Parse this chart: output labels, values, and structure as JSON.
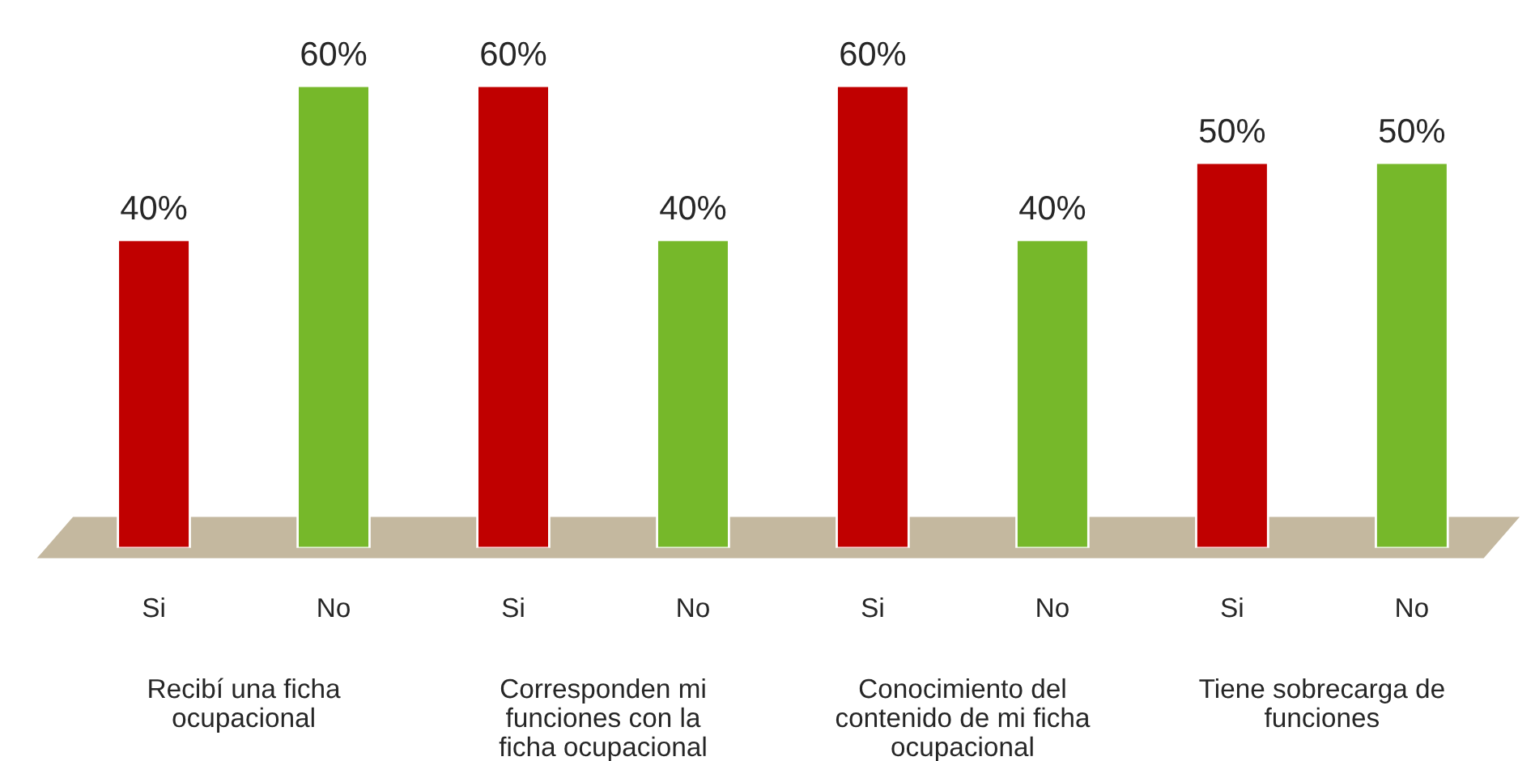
{
  "chart_data": {
    "type": "bar",
    "categories": [
      "Si",
      "No",
      "Si",
      "No",
      "Si",
      "No",
      "Si",
      "No"
    ],
    "values": [
      40,
      60,
      60,
      40,
      60,
      40,
      50,
      50
    ],
    "colors": [
      "#c00000",
      "#76b82a",
      "#c00000",
      "#76b82a",
      "#c00000",
      "#76b82a",
      "#c00000",
      "#76b82a"
    ],
    "value_labels": [
      "40%",
      "60%",
      "60%",
      "40%",
      "60%",
      "40%",
      "50%",
      "50%"
    ],
    "annotations": [
      "Recibí una ficha\nocupacional",
      "Corresponden mi\nfunciones con la\nficha ocupacional",
      "Conocimiento del\ncontenido de mi ficha\nocupacional",
      "Tiene sobrecarga de\nfunciones"
    ],
    "grid": false,
    "legend": false
  }
}
